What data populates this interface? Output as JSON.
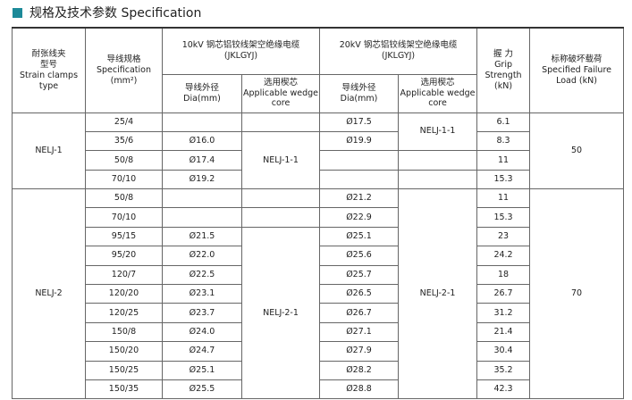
{
  "header": {
    "title": "规格及技术参数 Specification"
  },
  "table": {
    "head": {
      "model": [
        "耐张线夹",
        "型号",
        "Strain clamps type"
      ],
      "spec": [
        "导线规格",
        "Specification",
        "(mm²)"
      ],
      "group_10kv": [
        "10kV 钢芯铝铰线架空绝缘电缆",
        "(JKLGYJ)"
      ],
      "group_20kv": [
        "20kV 钢芯铝铰线架空绝缘电缆",
        "(JKLGYJ)"
      ],
      "dia": [
        "导线外径",
        "Dia(mm)"
      ],
      "core": [
        "选用楔芯",
        "Applicable wedge core"
      ],
      "grip": [
        "握 力",
        "Grip Strength",
        "(kN)"
      ],
      "load": [
        "标称破坏载荷",
        "Specified Failure",
        "Load (kN)"
      ]
    },
    "groups": [
      {
        "model": "NELJ-1",
        "load": 50,
        "core_10kv": "NELJ-1-1",
        "core_20kv": "NELJ-1-1",
        "rows": [
          [
            "25/4",
            null,
            "Ø17.5",
            6.1
          ],
          [
            "35/6",
            "Ø16.0",
            "Ø19.9",
            8.3
          ],
          [
            "50/8",
            "Ø17.4",
            null,
            11
          ],
          [
            "70/10",
            "Ø19.2",
            null,
            15.3
          ]
        ]
      },
      {
        "model": "NELJ-2",
        "load": 70,
        "core_10kv": "NELJ-2-1",
        "core_20kv": "NELJ-2-1",
        "rows": [
          [
            "50/8",
            null,
            "Ø21.2",
            11
          ],
          [
            "70/10",
            null,
            "Ø22.9",
            15.3
          ],
          [
            "95/15",
            "Ø21.5",
            "Ø25.1",
            23
          ],
          [
            "95/20",
            "Ø22.0",
            "Ø25.6",
            24.2
          ],
          [
            "120/7",
            "Ø22.5",
            "Ø25.7",
            18
          ],
          [
            "120/20",
            "Ø23.1",
            "Ø26.5",
            26.7
          ],
          [
            "120/25",
            "Ø23.7",
            "Ø26.7",
            31.2
          ],
          [
            "150/8",
            "Ø24.0",
            "Ø27.1",
            21.4
          ],
          [
            "150/20",
            "Ø24.7",
            "Ø27.9",
            30.4
          ],
          [
            "150/25",
            "Ø25.1",
            "Ø28.2",
            35.2
          ],
          [
            "150/35",
            "Ø25.5",
            "Ø28.8",
            42.3
          ]
        ]
      }
    ]
  }
}
